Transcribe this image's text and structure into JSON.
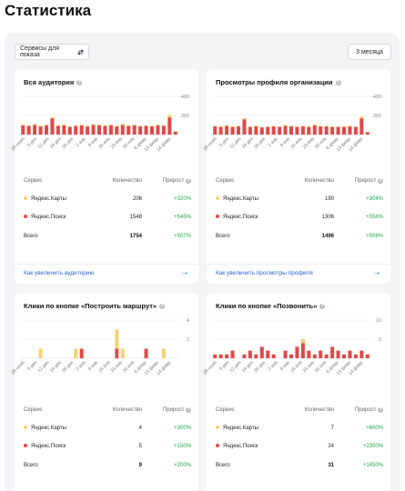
{
  "page": {
    "title": "Статистика"
  },
  "toolbar": {
    "services_label": "Сервисы для показа",
    "period_label": "3 месяца"
  },
  "colors": {
    "maps": "#f6d370",
    "search": "#e04848",
    "grid": "#e7e8ea",
    "link": "#2766d9",
    "growth": "#1aa646"
  },
  "x_ticks": [
    "28 нояб.",
    "5 дек.",
    "12 дек.",
    "19 дек.",
    "26 дек.",
    "2 янв.",
    "9 янв.",
    "16 янв.",
    "23 янв.",
    "30 янв.",
    "6 февр.",
    "13 февр.",
    "14 февр."
  ],
  "table_headers": {
    "service": "Сервис",
    "count": "Количество",
    "growth": "Прирост"
  },
  "cards": [
    {
      "title": "Вся аудитория",
      "chart_data": {
        "type": "bar",
        "stacked": true,
        "y_ticks": [
          200,
          400
        ],
        "ylim": [
          0,
          400
        ],
        "series": [
          {
            "name": "Яндекс.Поиск",
            "color": "#e04848",
            "values": [
              95,
              90,
              100,
              85,
              95,
              170,
              90,
              95,
              80,
              90,
              95,
              85,
              100,
              95,
              90,
              95,
              85,
              100,
              90,
              95,
              85,
              90,
              85,
              95,
              90,
              180,
              30
            ]
          },
          {
            "name": "Яндекс.Карты",
            "color": "#f6d370",
            "values": [
              10,
              8,
              12,
              8,
              10,
              12,
              8,
              10,
              6,
              8,
              8,
              8,
              10,
              10,
              8,
              10,
              8,
              12,
              8,
              10,
              8,
              8,
              8,
              10,
              10,
              25,
              5
            ]
          }
        ]
      },
      "rows": [
        {
          "name": "Яндекс.Карты",
          "count": "206",
          "growth": "+320%"
        },
        {
          "name": "Яндекс.Поиск",
          "count": "1548",
          "growth": "+545%"
        }
      ],
      "total": {
        "label": "Всего",
        "count": "1754",
        "growth": "+507%"
      },
      "link": "Как увеличить аудиторию"
    },
    {
      "title": "Просмотры профиля организации",
      "chart_data": {
        "type": "bar",
        "stacked": true,
        "y_ticks": [
          200,
          400
        ],
        "ylim": [
          0,
          400
        ],
        "series": [
          {
            "name": "Яндекс.Поиск",
            "color": "#e04848",
            "values": [
              85,
              80,
              90,
              80,
              85,
              160,
              80,
              85,
              75,
              80,
              85,
              80,
              90,
              85,
              80,
              85,
              80,
              95,
              85,
              85,
              80,
              80,
              80,
              85,
              80,
              170,
              25
            ]
          },
          {
            "name": "Яндекс.Карты",
            "color": "#f6d370",
            "values": [
              8,
              6,
              10,
              6,
              8,
              10,
              6,
              8,
              5,
              6,
              6,
              6,
              8,
              8,
              6,
              8,
              6,
              10,
              6,
              8,
              6,
              6,
              6,
              8,
              8,
              20,
              4
            ]
          }
        ]
      },
      "rows": [
        {
          "name": "Яндекс.Карты",
          "count": "190",
          "growth": "+304%"
        },
        {
          "name": "Яндекс.Поиск",
          "count": "1306",
          "growth": "+556%"
        }
      ],
      "total": {
        "label": "Всего",
        "count": "1496",
        "growth": "+508%"
      },
      "link": "Как увеличить просмотры профиля"
    },
    {
      "title": "Клики по кнопке «Построить маршрут»",
      "chart_data": {
        "type": "bar",
        "stacked": true,
        "y_ticks": [
          2,
          4
        ],
        "ylim": [
          0,
          4
        ],
        "series": [
          {
            "name": "Яндекс.Поиск",
            "color": "#e04848",
            "values": [
              0,
              0,
              0,
              0,
              0,
              0,
              0,
              0,
              0,
              0,
              1,
              0,
              0,
              0,
              0,
              0,
              1,
              0,
              0,
              0,
              0,
              1,
              0,
              0,
              0,
              0,
              0
            ]
          },
          {
            "name": "Яндекс.Карты",
            "color": "#f6d370",
            "values": [
              0,
              0,
              0,
              1,
              0,
              0,
              0,
              0,
              0,
              1,
              0,
              0,
              0,
              0,
              0,
              0,
              2,
              1,
              0,
              0,
              0,
              0,
              0,
              0,
              1,
              0,
              0
            ]
          }
        ]
      },
      "rows": [
        {
          "name": "Яндекс.Карты",
          "count": "4",
          "growth": "+300%"
        },
        {
          "name": "Яндекс.Поиск",
          "count": "5",
          "growth": "+150%"
        }
      ],
      "total": {
        "label": "Всего",
        "count": "9",
        "growth": "+200%"
      }
    },
    {
      "title": "Клики по кнопке «Позвонить»",
      "chart_data": {
        "type": "bar",
        "stacked": true,
        "y_ticks": [
          5,
          10
        ],
        "ylim": [
          0,
          10
        ],
        "series": [
          {
            "name": "Яндекс.Поиск",
            "color": "#e04848",
            "values": [
              1,
              1,
              1,
              2,
              0,
              1,
              2,
              1,
              3,
              2,
              1,
              0,
              2,
              1,
              3,
              4,
              2,
              1,
              2,
              1,
              3,
              2,
              1,
              2,
              1,
              2,
              1
            ]
          },
          {
            "name": "Яндекс.Карты",
            "color": "#f6d370",
            "values": [
              0,
              0,
              0,
              0,
              0,
              0,
              0,
              0,
              0,
              0,
              0,
              0,
              0,
              0,
              0,
              1,
              0,
              0,
              0,
              0,
              0,
              0,
              0,
              0,
              0,
              0,
              0
            ]
          }
        ]
      },
      "rows": [
        {
          "name": "Яндекс.Карты",
          "count": "7",
          "growth": "+600%"
        },
        {
          "name": "Яндекс.Поиск",
          "count": "24",
          "growth": "+2300%"
        }
      ],
      "total": {
        "label": "Всего",
        "count": "31",
        "growth": "+1450%"
      }
    }
  ]
}
